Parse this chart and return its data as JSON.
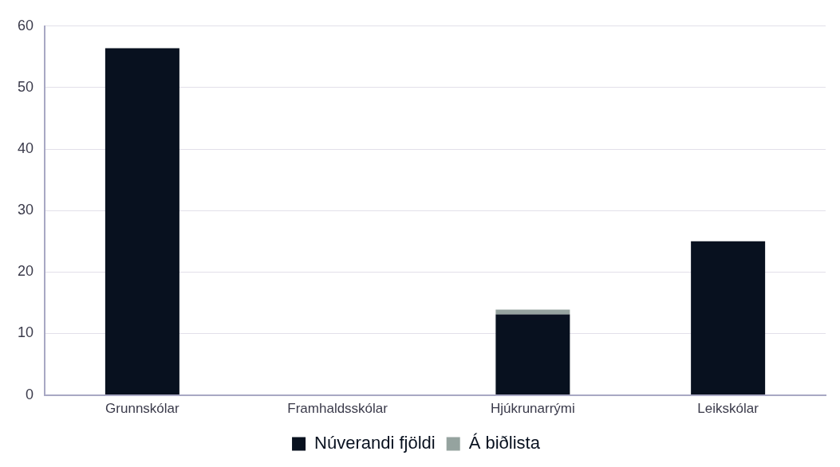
{
  "chart_data": {
    "type": "bar",
    "stacked": true,
    "categories": [
      "Grunnskólar",
      "Framhaldsskólar",
      "Hjúkrunarrými",
      "Leikskólar"
    ],
    "series": [
      {
        "name": "Núverandi fjöldi",
        "color": "#08111f",
        "values": [
          56.4,
          0,
          13.1,
          25
        ]
      },
      {
        "name": "Á biðlista",
        "color": "#95a39f",
        "values": [
          0,
          0,
          0.8,
          0
        ]
      }
    ],
    "ylim": [
      0,
      60
    ],
    "yticks": [
      0,
      10,
      20,
      30,
      40,
      50,
      60
    ],
    "grid": "y",
    "legend": "bottom"
  }
}
